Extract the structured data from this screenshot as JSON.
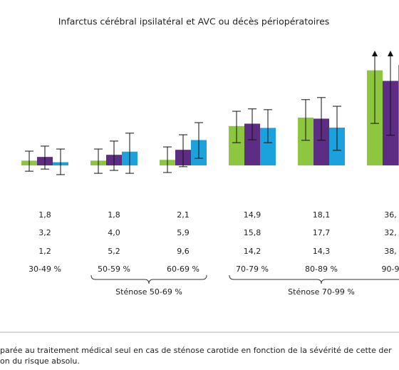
{
  "chart_data": {
    "type": "bar",
    "title": "Infarctus cérébral ipsilatéral et AVC ou décès périopératoires",
    "categories": [
      "30-49 %",
      "50-59 %",
      "60-69 %",
      "70-79 %",
      "80-89 %",
      "90-9"
    ],
    "ylim": [
      -4,
      43.2
    ],
    "grid": false,
    "series": [
      {
        "color": "#8dc63f",
        "values": [
          1.8,
          1.8,
          2.1,
          14.9,
          18.1,
          36
        ],
        "value_labels": [
          "1,8",
          "1,8",
          "2,1",
          "14,9",
          "18,1",
          "36,"
        ],
        "error_low": [
          -2.2,
          -3.0,
          -2.7,
          8.6,
          9.5,
          15.9
        ],
        "error_high": [
          5.4,
          6.2,
          7.0,
          20.5,
          24.9,
          43.2
        ]
      },
      {
        "color": "#5c2d82",
        "values": [
          3.2,
          4.0,
          5.9,
          15.8,
          17.7,
          32
        ],
        "value_labels": [
          "3,2",
          "4,0",
          "5,9",
          "15,8",
          "17,7",
          "32,"
        ],
        "error_low": [
          -1.4,
          -1.9,
          -0.5,
          9.7,
          9.5,
          11.4
        ],
        "error_high": [
          7.3,
          9.2,
          11.6,
          21.4,
          25.7,
          43.2
        ]
      },
      {
        "color": "#1ba1dc",
        "values": [
          1.2,
          5.2,
          9.6,
          14.2,
          14.3,
          38
        ],
        "value_labels": [
          "1,2",
          "5,2",
          "9,6",
          "14,2",
          "14,3",
          "38,"
        ],
        "error_low": [
          -3.5,
          -3.0,
          2.7,
          8.6,
          5.7,
          null
        ],
        "error_high": [
          6.2,
          12.2,
          16.2,
          21.1,
          22.4,
          null
        ]
      }
    ],
    "group_labels": [
      "Sténose 50-69 %",
      "Sténose 70-99 %"
    ],
    "caption": [
      "parée au traitement médical seul en cas de sténose carotide en fonction de la sévérité de cette der",
      "on du risque absolu."
    ]
  }
}
